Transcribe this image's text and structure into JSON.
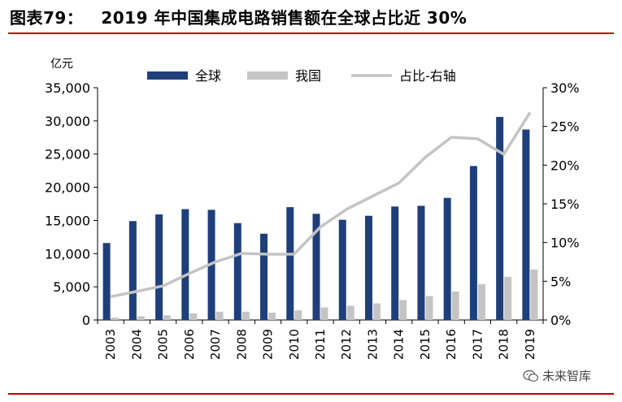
{
  "header": {
    "label": "图表79：",
    "text": "2019 年中国集成电路销售额在全球占比近 30%"
  },
  "watermark": {
    "text": "未来智库",
    "icon": "wechat-icon"
  },
  "colors": {
    "rule": "#c00000",
    "bar_global": "#1f3f7a",
    "bar_china": "#c4c4c4",
    "line_share": "#c4c4c4"
  },
  "chart_data": {
    "type": "bar",
    "categories": [
      "2003",
      "2004",
      "2005",
      "2006",
      "2007",
      "2008",
      "2009",
      "2010",
      "2011",
      "2012",
      "2013",
      "2014",
      "2015",
      "2016",
      "2017",
      "2018",
      "2019"
    ],
    "y_unit": "亿元",
    "ylim": [
      0,
      35000
    ],
    "yticks": [
      "0",
      "5,000",
      "10,000",
      "15,000",
      "20,000",
      "25,000",
      "30,000",
      "35,000"
    ],
    "y2lim": [
      0,
      30
    ],
    "y2ticks": [
      "0%",
      "5%",
      "10%",
      "15%",
      "20%",
      "25%",
      "30%"
    ],
    "legend_position": "top",
    "series": [
      {
        "name": "全球",
        "type": "bar",
        "axis": "left",
        "values": [
          11600,
          14900,
          15900,
          16700,
          16600,
          14600,
          13000,
          17000,
          16000,
          15100,
          15700,
          17100,
          17200,
          18400,
          23200,
          30600,
          28700
        ]
      },
      {
        "name": "我国",
        "type": "bar",
        "axis": "left",
        "values": [
          350,
          550,
          700,
          1000,
          1250,
          1250,
          1100,
          1450,
          1900,
          2150,
          2500,
          3000,
          3600,
          4300,
          5400,
          6500,
          7600
        ]
      },
      {
        "name": "占比-右轴",
        "type": "line",
        "axis": "right",
        "values": [
          3.0,
          3.7,
          4.4,
          6.0,
          7.5,
          8.6,
          8.5,
          8.5,
          12.0,
          14.3,
          16.0,
          17.7,
          21.0,
          23.6,
          23.4,
          21.4,
          26.8
        ]
      }
    ]
  }
}
